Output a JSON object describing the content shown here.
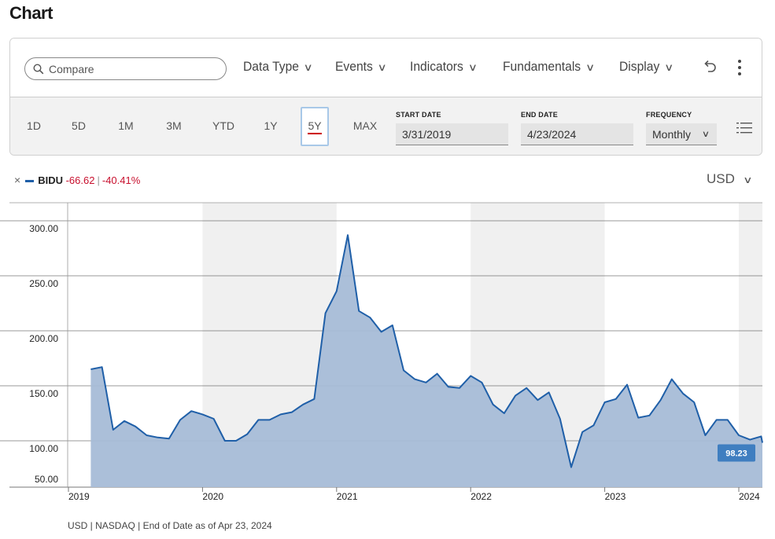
{
  "page": {
    "title": "Chart"
  },
  "toolbar": {
    "search_placeholder": "Compare",
    "menus": [
      "Data Type",
      "Events",
      "Indicators",
      "Fundamentals",
      "Display"
    ],
    "chevron": "∨"
  },
  "ranges": {
    "buttons": [
      "1D",
      "5D",
      "1M",
      "3M",
      "YTD",
      "1Y",
      "5Y",
      "MAX"
    ],
    "active": "5Y"
  },
  "dates": {
    "start_label": "START DATE",
    "start_value": "3/31/2019",
    "end_label": "END DATE",
    "end_value": "4/23/2024",
    "frequency_label": "FREQUENCY",
    "frequency_value": "Monthly"
  },
  "legend": {
    "close_glyph": "×",
    "symbol": "BIDU",
    "change": "-66.62",
    "separator": "|",
    "change_pct": "-40.41%"
  },
  "currency": {
    "value": "USD"
  },
  "footer": {
    "text": "USD | NASDAQ | End of Date as of Apr 23, 2024"
  },
  "colors": {
    "line": "#1f5fa8",
    "fill": "#a7bcd7",
    "band": "#f0f0f0",
    "badge": "#3f7ec0"
  },
  "chart_data": {
    "type": "area",
    "series": [
      {
        "name": "BIDU",
        "x": [
          "2019-03",
          "2019-04",
          "2019-05",
          "2019-06",
          "2019-07",
          "2019-08",
          "2019-09",
          "2019-10",
          "2019-11",
          "2019-12",
          "2020-01",
          "2020-02",
          "2020-03",
          "2020-04",
          "2020-05",
          "2020-06",
          "2020-07",
          "2020-08",
          "2020-09",
          "2020-10",
          "2020-11",
          "2020-12",
          "2021-01",
          "2021-02",
          "2021-03",
          "2021-04",
          "2021-05",
          "2021-06",
          "2021-07",
          "2021-08",
          "2021-09",
          "2021-10",
          "2021-11",
          "2021-12",
          "2022-01",
          "2022-02",
          "2022-03",
          "2022-04",
          "2022-05",
          "2022-06",
          "2022-07",
          "2022-08",
          "2022-09",
          "2022-10",
          "2022-11",
          "2022-12",
          "2023-01",
          "2023-02",
          "2023-03",
          "2023-04",
          "2023-05",
          "2023-06",
          "2023-07",
          "2023-08",
          "2023-09",
          "2023-10",
          "2023-11",
          "2023-12",
          "2024-01",
          "2024-02",
          "2024-03",
          "2024-04"
        ],
        "values": [
          165,
          167,
          110,
          118,
          113,
          105,
          103,
          102,
          119,
          127,
          124,
          120,
          100,
          100,
          106,
          119,
          119,
          124,
          126,
          133,
          138,
          216,
          236,
          287,
          218,
          212,
          199,
          205,
          164,
          156,
          153,
          161,
          149,
          148,
          159,
          153,
          133,
          125,
          141,
          148,
          137,
          144,
          120,
          76,
          108,
          114,
          135,
          138,
          151,
          121,
          123,
          137,
          156,
          143,
          135,
          105,
          119,
          119,
          105,
          101,
          104,
          98.23
        ]
      }
    ],
    "x_ticks": [
      "2019",
      "2020",
      "2021",
      "2022",
      "2023",
      "2024"
    ],
    "y_ticks": [
      "300.00",
      "250.00",
      "200.00",
      "150.00",
      "100.00",
      "50.00"
    ],
    "ylim": [
      50,
      300
    ],
    "last_value_label": "98.23",
    "grid": true
  }
}
